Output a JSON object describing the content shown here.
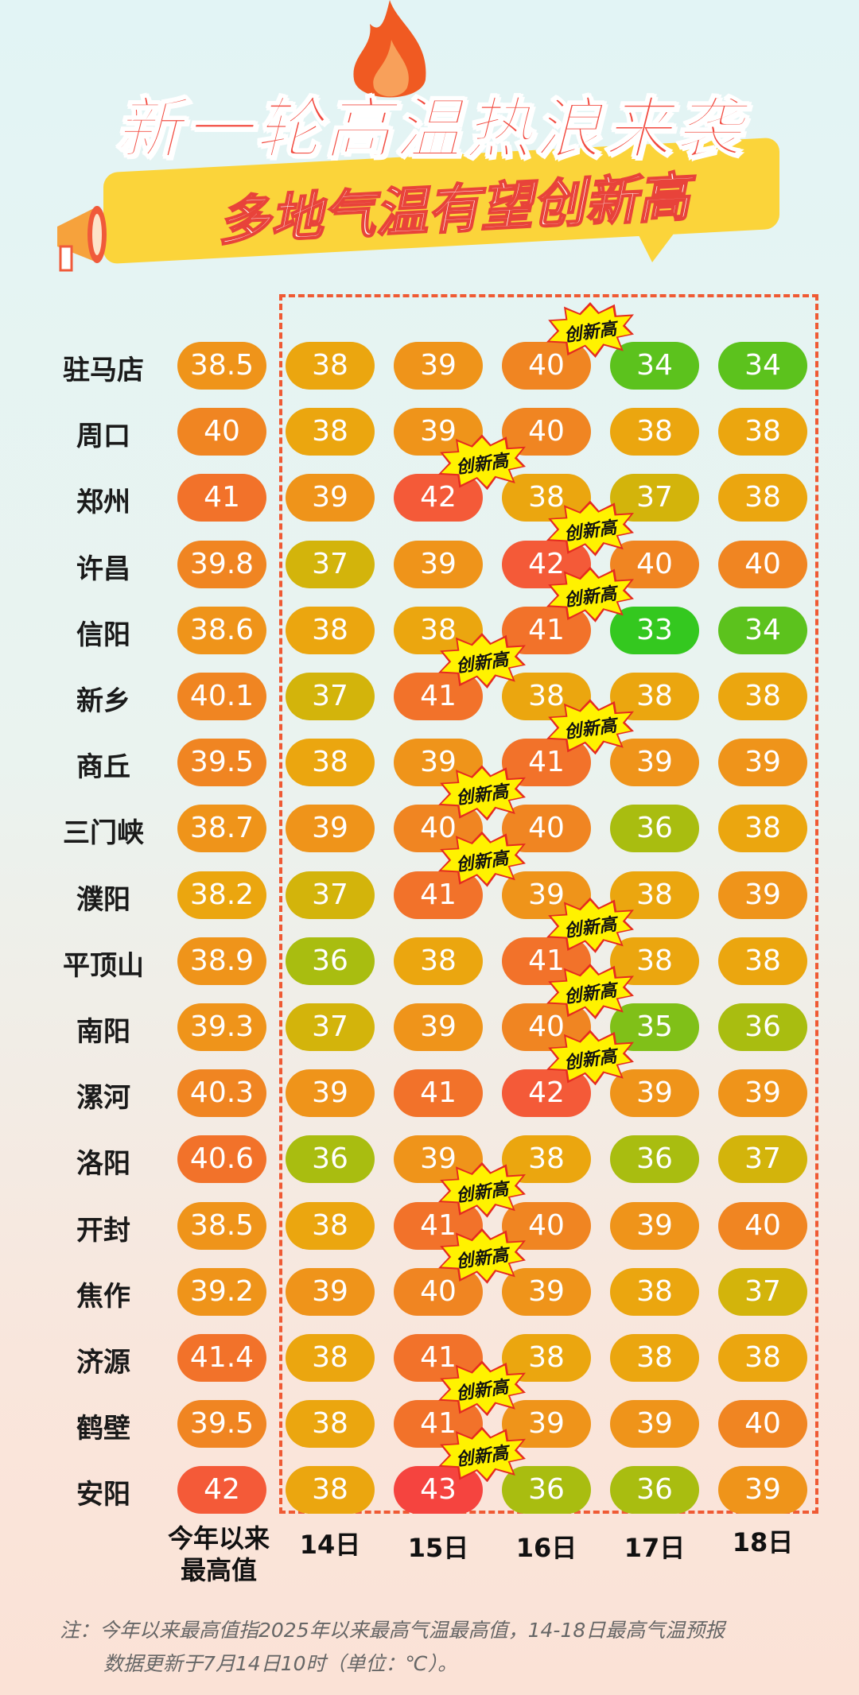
{
  "title": "新一轮高温热浪来袭",
  "subtitle": "多地气温有望创新高",
  "badge_label": "创新高",
  "columns": {
    "max_label_line1": "今年以来",
    "max_label_line2": "最高值",
    "days": [
      "14日",
      "15日",
      "16日",
      "17日",
      "18日"
    ]
  },
  "rows": [
    {
      "city": "驻马店",
      "max": "38.5",
      "days": [
        "38",
        "39",
        "40",
        "34",
        "34"
      ],
      "record_day": 2
    },
    {
      "city": "周口",
      "max": "40",
      "days": [
        "38",
        "39",
        "40",
        "38",
        "38"
      ],
      "record_day": null
    },
    {
      "city": "郑州",
      "max": "41",
      "days": [
        "39",
        "42",
        "38",
        "37",
        "38"
      ],
      "record_day": 1
    },
    {
      "city": "许昌",
      "max": "39.8",
      "days": [
        "37",
        "39",
        "42",
        "40",
        "40"
      ],
      "record_day": 2
    },
    {
      "city": "信阳",
      "max": "38.6",
      "days": [
        "38",
        "38",
        "41",
        "33",
        "34"
      ],
      "record_day": 2
    },
    {
      "city": "新乡",
      "max": "40.1",
      "days": [
        "37",
        "41",
        "38",
        "38",
        "38"
      ],
      "record_day": 1
    },
    {
      "city": "商丘",
      "max": "39.5",
      "days": [
        "38",
        "39",
        "41",
        "39",
        "39"
      ],
      "record_day": 2
    },
    {
      "city": "三门峡",
      "max": "38.7",
      "days": [
        "39",
        "40",
        "40",
        "36",
        "38"
      ],
      "record_day": 1
    },
    {
      "city": "濮阳",
      "max": "38.2",
      "days": [
        "37",
        "41",
        "39",
        "38",
        "39"
      ],
      "record_day": 1
    },
    {
      "city": "平顶山",
      "max": "38.9",
      "days": [
        "36",
        "38",
        "41",
        "38",
        "38"
      ],
      "record_day": 2
    },
    {
      "city": "南阳",
      "max": "39.3",
      "days": [
        "37",
        "39",
        "40",
        "35",
        "36"
      ],
      "record_day": 2
    },
    {
      "city": "漯河",
      "max": "40.3",
      "days": [
        "39",
        "41",
        "42",
        "39",
        "39"
      ],
      "record_day": 2
    },
    {
      "city": "洛阳",
      "max": "40.6",
      "days": [
        "36",
        "39",
        "38",
        "36",
        "37"
      ],
      "record_day": null
    },
    {
      "city": "开封",
      "max": "38.5",
      "days": [
        "38",
        "41",
        "40",
        "39",
        "40"
      ],
      "record_day": 1
    },
    {
      "city": "焦作",
      "max": "39.2",
      "days": [
        "39",
        "40",
        "39",
        "38",
        "37"
      ],
      "record_day": 1
    },
    {
      "city": "济源",
      "max": "41.4",
      "days": [
        "38",
        "41",
        "38",
        "38",
        "38"
      ],
      "record_day": null
    },
    {
      "city": "鹤壁",
      "max": "39.5",
      "days": [
        "38",
        "41",
        "39",
        "39",
        "40"
      ],
      "record_day": 1
    },
    {
      "city": "安阳",
      "max": "42",
      "days": [
        "38",
        "43",
        "36",
        "36",
        "39"
      ],
      "record_day": 1
    }
  ],
  "temp_colors": {
    "33": "#34c81f",
    "34": "#5cc21d",
    "35": "#80c018",
    "36": "#a9bd10",
    "37": "#d3b40b",
    "38": "#eba60f",
    "39": "#ef941a",
    "40": "#f08522",
    "41": "#f2722a",
    "42": "#f45a38",
    "43": "#f5443f"
  },
  "note_line1": "注：今年以来最高值指2025年以来最高气温最高值，14-18日最高气温预报",
  "note_line2": "数据更新于7月14日10时（单位：℃）。"
}
